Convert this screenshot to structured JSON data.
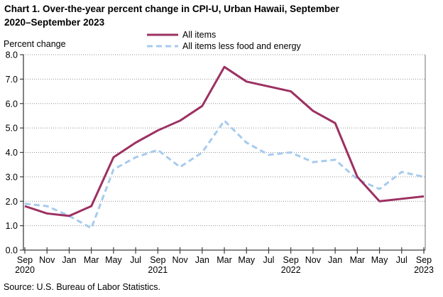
{
  "title": {
    "line1": "Chart 1. Over-the-year percent change in CPI-U, Urban Hawaii, September",
    "line2": "2020–September 2023"
  },
  "y_axis_label": "Percent change",
  "source": "Source: U.S. Bureau of Labor Statistics.",
  "legend": [
    {
      "label": "All items",
      "color": "#9c3162",
      "style": "solid"
    },
    {
      "label": "All items less food and energy",
      "color": "#a6cbee",
      "style": "dashed"
    }
  ],
  "colors": {
    "all_items_line": "#9c3162",
    "core_line": "#a6cbee",
    "gridline": "#909090",
    "axis": "#404040"
  },
  "chart_data": {
    "type": "line",
    "title": "Over-the-year percent change in CPI-U, Urban Hawaii, September 2020–September 2023",
    "xlabel": "",
    "ylabel": "Percent change",
    "ylim": [
      0,
      8
    ],
    "grid": true,
    "legend_position": "top-center",
    "x_tick_labels": [
      "Sep",
      "Nov",
      "Jan",
      "Mar",
      "May",
      "Jul",
      "Sep",
      "Nov",
      "Jan",
      "Mar",
      "May",
      "Jul",
      "Sep",
      "Nov",
      "Jan",
      "Mar",
      "May",
      "Jul",
      "Sep"
    ],
    "x_year_labels": [
      {
        "index": 0,
        "year": "2020"
      },
      {
        "index": 6,
        "year": "2021"
      },
      {
        "index": 12,
        "year": "2022"
      },
      {
        "index": 18,
        "year": "2023"
      }
    ],
    "y_tick_labels": [
      "0.0",
      "1.0",
      "2.0",
      "3.0",
      "4.0",
      "5.0",
      "6.0",
      "7.0",
      "8.0"
    ],
    "series": [
      {
        "name": "All items",
        "color": "#9c3162",
        "dash": null,
        "values": [
          1.8,
          1.5,
          1.4,
          1.8,
          3.8,
          4.4,
          4.9,
          5.3,
          5.9,
          7.5,
          6.9,
          6.7,
          6.5,
          5.7,
          5.2,
          3.0,
          2.0,
          2.1,
          2.2
        ]
      },
      {
        "name": "All items less food and energy",
        "color": "#a6cbee",
        "dash": "8 5",
        "values": [
          1.9,
          1.8,
          1.4,
          0.9,
          3.3,
          3.8,
          4.1,
          3.4,
          4.0,
          5.3,
          4.4,
          3.9,
          4.0,
          3.6,
          3.7,
          2.9,
          2.5,
          3.2,
          3.0
        ]
      }
    ]
  }
}
